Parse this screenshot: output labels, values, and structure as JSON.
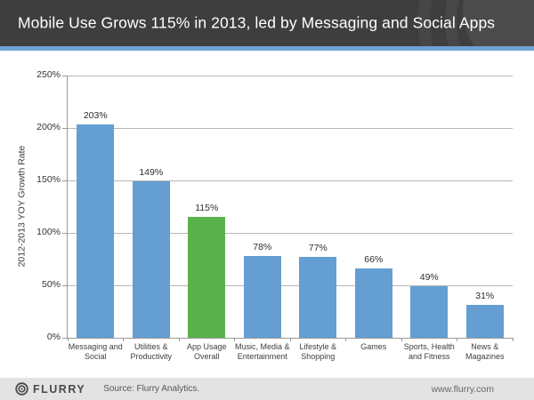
{
  "title_bar": {
    "title": "Mobile Use Grows 115% in 2013, led by Messaging and Social Apps"
  },
  "footer": {
    "brand": "FLURRY",
    "source": "Source: Flurry Analytics.",
    "website": "www.flurry.com"
  },
  "colors": {
    "title_bar_bg": "#3E3E3E",
    "accent_blue": "#6FA3D3",
    "bar_blue": "#649ED2",
    "bar_green": "#5BB24D",
    "gridline": "#B7B7B7",
    "axis": "#9A9A9A",
    "footer_bg": "#E3E3E3"
  },
  "chart_data": {
    "type": "bar",
    "title": "Mobile Use Grows 115% in 2013, led by Messaging and Social Apps",
    "categories": [
      "Messaging and Social",
      "Utilities & Productivity",
      "App Usage Overall",
      "Music, Media & Entertainment",
      "Lifestyle & Shopping",
      "Games",
      "Sports, Health and Fitness",
      "News & Magazines"
    ],
    "category_lines": [
      [
        "Messaging and",
        "Social"
      ],
      [
        "Utilities &",
        "Productivity"
      ],
      [
        "App Usage",
        "Overall"
      ],
      [
        "Music, Media &",
        "Entertainment"
      ],
      [
        "Lifestyle &",
        "Shopping"
      ],
      [
        "Games"
      ],
      [
        "Sports, Health",
        "and Fitness"
      ],
      [
        "News &",
        "Magazines"
      ]
    ],
    "values": [
      203,
      149,
      115,
      78,
      77,
      66,
      49,
      31
    ],
    "value_labels": [
      "203%",
      "149%",
      "115%",
      "78%",
      "77%",
      "66%",
      "49%",
      "31%"
    ],
    "highlight_index": 2,
    "highlight_category": "App Usage Overall",
    "bar_color": "#649ED2",
    "highlight_color": "#5BB24D",
    "xlabel": "",
    "ylabel": "2012-2013 YOY Growth Rate",
    "ylim": [
      0,
      250
    ],
    "yticks": [
      {
        "label": "0%",
        "value": 0
      },
      {
        "label": "50%",
        "value": 50
      },
      {
        "label": "100%",
        "value": 100
      },
      {
        "label": "150%",
        "value": 150
      },
      {
        "label": "200%",
        "value": 200
      },
      {
        "label": "250%",
        "value": 250
      }
    ],
    "grid": true,
    "legend_position": "none"
  }
}
